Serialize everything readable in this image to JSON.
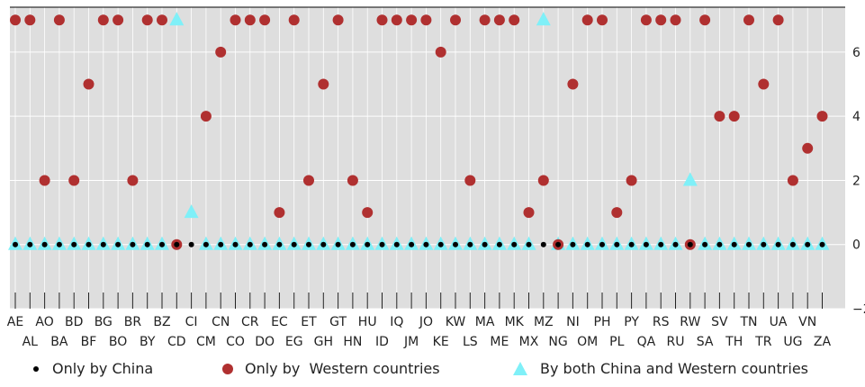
{
  "chart_data": {
    "type": "scatter",
    "categories": [
      "AE",
      "AL",
      "AO",
      "BA",
      "BD",
      "BF",
      "BG",
      "BO",
      "BR",
      "BY",
      "BZ",
      "CD",
      "CI",
      "CM",
      "CN",
      "CO",
      "CR",
      "DO",
      "EC",
      "EG",
      "ET",
      "GH",
      "GT",
      "HN",
      "HU",
      "ID",
      "IQ",
      "JM",
      "JO",
      "KE",
      "KW",
      "LS",
      "MA",
      "ME",
      "MK",
      "MX",
      "MZ",
      "NG",
      "NI",
      "OM",
      "PH",
      "PL",
      "PY",
      "QA",
      "RS",
      "RU",
      "RW",
      "SA",
      "SV",
      "TH",
      "TN",
      "TR",
      "UA",
      "UG",
      "VN",
      "ZA"
    ],
    "ylim": [
      -2,
      7.4
    ],
    "yticks": [
      -2,
      0,
      2,
      4,
      6
    ],
    "ytick_labels": [
      "−2",
      "0",
      "2",
      "4",
      "6"
    ],
    "grid": true,
    "legend_position": "bottom",
    "series": [
      {
        "name": "Only by China",
        "marker": "dot",
        "color": "#000000",
        "values": [
          0,
          0,
          0,
          0,
          0,
          0,
          0,
          0,
          0,
          0,
          0,
          0,
          0,
          0,
          0,
          0,
          0,
          0,
          0,
          0,
          0,
          0,
          0,
          0,
          0,
          0,
          0,
          0,
          0,
          0,
          0,
          0,
          0,
          0,
          0,
          0,
          0,
          0,
          0,
          0,
          0,
          0,
          0,
          0,
          0,
          0,
          0,
          0,
          0,
          0,
          0,
          0,
          0,
          0,
          0,
          0
        ]
      },
      {
        "name": "Only by  Western countries",
        "marker": "circle",
        "color": "#b03030",
        "values": [
          7,
          7,
          2,
          7,
          2,
          5,
          7,
          7,
          2,
          7,
          7,
          0,
          null,
          4,
          6,
          7,
          7,
          7,
          1,
          7,
          2,
          5,
          7,
          2,
          1,
          7,
          7,
          7,
          7,
          6,
          7,
          2,
          7,
          7,
          7,
          1,
          2,
          0,
          5,
          7,
          7,
          1,
          2,
          7,
          7,
          7,
          0,
          7,
          4,
          4,
          7,
          5,
          7,
          2,
          3,
          4
        ]
      },
      {
        "name": "By both China and Western countries",
        "marker": "triangle",
        "color": "#7ff0f8",
        "values": [
          0,
          0,
          0,
          0,
          0,
          0,
          0,
          0,
          0,
          0,
          0,
          7,
          1,
          0,
          0,
          0,
          0,
          0,
          0,
          0,
          0,
          0,
          0,
          0,
          0,
          0,
          0,
          0,
          0,
          0,
          0,
          0,
          0,
          0,
          0,
          0,
          7,
          0,
          0,
          0,
          0,
          0,
          0,
          0,
          0,
          0,
          2,
          0,
          0,
          0,
          0,
          0,
          0,
          0,
          0,
          0
        ]
      }
    ]
  }
}
